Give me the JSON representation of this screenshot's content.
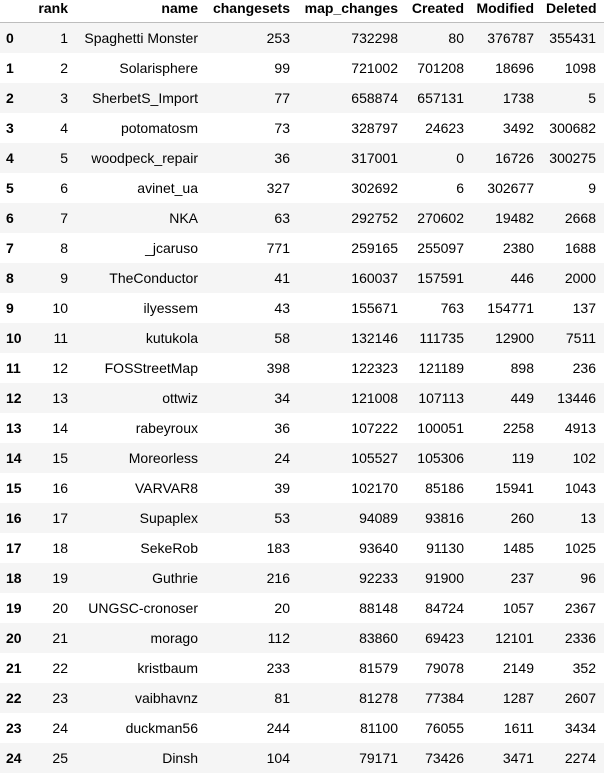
{
  "table": {
    "columns": [
      "",
      "rank",
      "name",
      "changesets",
      "map_changes",
      "Created",
      "Modified",
      "Deleted"
    ],
    "rows": [
      [
        "0",
        "1",
        "Spaghetti Monster",
        "253",
        "732298",
        "80",
        "376787",
        "355431"
      ],
      [
        "1",
        "2",
        "Solarisphere",
        "99",
        "721002",
        "701208",
        "18696",
        "1098"
      ],
      [
        "2",
        "3",
        "SherbetS_Import",
        "77",
        "658874",
        "657131",
        "1738",
        "5"
      ],
      [
        "3",
        "4",
        "potomatosm",
        "73",
        "328797",
        "24623",
        "3492",
        "300682"
      ],
      [
        "4",
        "5",
        "woodpeck_repair",
        "36",
        "317001",
        "0",
        "16726",
        "300275"
      ],
      [
        "5",
        "6",
        "avinet_ua",
        "327",
        "302692",
        "6",
        "302677",
        "9"
      ],
      [
        "6",
        "7",
        "NKA",
        "63",
        "292752",
        "270602",
        "19482",
        "2668"
      ],
      [
        "7",
        "8",
        "_jcaruso",
        "771",
        "259165",
        "255097",
        "2380",
        "1688"
      ],
      [
        "8",
        "9",
        "TheConductor",
        "41",
        "160037",
        "157591",
        "446",
        "2000"
      ],
      [
        "9",
        "10",
        "ilyessem",
        "43",
        "155671",
        "763",
        "154771",
        "137"
      ],
      [
        "10",
        "11",
        "kutukola",
        "58",
        "132146",
        "111735",
        "12900",
        "7511"
      ],
      [
        "11",
        "12",
        "FOSStreetMap",
        "398",
        "122323",
        "121189",
        "898",
        "236"
      ],
      [
        "12",
        "13",
        "ottwiz",
        "34",
        "121008",
        "107113",
        "449",
        "13446"
      ],
      [
        "13",
        "14",
        "rabeyroux",
        "36",
        "107222",
        "100051",
        "2258",
        "4913"
      ],
      [
        "14",
        "15",
        "Moreorless",
        "24",
        "105527",
        "105306",
        "119",
        "102"
      ],
      [
        "15",
        "16",
        "VARVAR8",
        "39",
        "102170",
        "85186",
        "15941",
        "1043"
      ],
      [
        "16",
        "17",
        "Supaplex",
        "53",
        "94089",
        "93816",
        "260",
        "13"
      ],
      [
        "17",
        "18",
        "SekeRob",
        "183",
        "93640",
        "91130",
        "1485",
        "1025"
      ],
      [
        "18",
        "19",
        "Guthrie",
        "216",
        "92233",
        "91900",
        "237",
        "96"
      ],
      [
        "19",
        "20",
        "UNGSC-cronoser",
        "20",
        "88148",
        "84724",
        "1057",
        "2367"
      ],
      [
        "20",
        "21",
        "morago",
        "112",
        "83860",
        "69423",
        "12101",
        "2336"
      ],
      [
        "21",
        "22",
        "kristbaum",
        "233",
        "81579",
        "79078",
        "2149",
        "352"
      ],
      [
        "22",
        "23",
        "vaibhavnz",
        "81",
        "81278",
        "77384",
        "1287",
        "2607"
      ],
      [
        "23",
        "24",
        "duckman56",
        "244",
        "81100",
        "76055",
        "1611",
        "3434"
      ],
      [
        "24",
        "25",
        "Dinsh",
        "104",
        "79171",
        "73426",
        "3471",
        "2274"
      ]
    ]
  }
}
